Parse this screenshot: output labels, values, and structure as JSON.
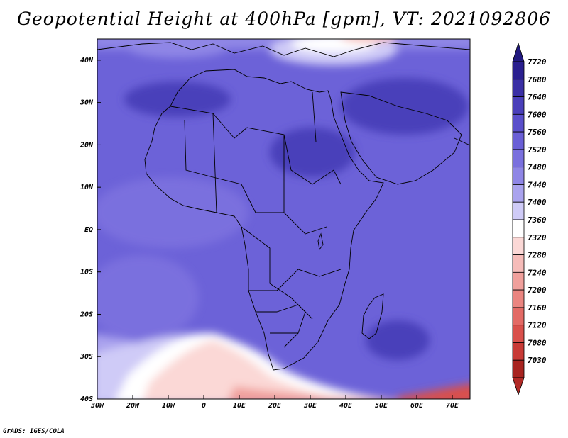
{
  "title": "Geopotential Height at 400hPa [gpm], VT: 2021092806",
  "credit": "GrADS: IGES/COLA",
  "map": {
    "lon_range": [
      -30,
      75
    ],
    "lat_range": [
      -40,
      45
    ],
    "lon_ticks": [
      {
        "value": -30,
        "label": "30W"
      },
      {
        "value": -20,
        "label": "20W"
      },
      {
        "value": -10,
        "label": "10W"
      },
      {
        "value": 0,
        "label": "0"
      },
      {
        "value": 10,
        "label": "10E"
      },
      {
        "value": 20,
        "label": "20E"
      },
      {
        "value": 30,
        "label": "30E"
      },
      {
        "value": 40,
        "label": "40E"
      },
      {
        "value": 50,
        "label": "50E"
      },
      {
        "value": 60,
        "label": "60E"
      },
      {
        "value": 70,
        "label": "70E"
      }
    ],
    "lat_ticks": [
      {
        "value": 40,
        "label": "40N"
      },
      {
        "value": 30,
        "label": "30N"
      },
      {
        "value": 20,
        "label": "20N"
      },
      {
        "value": 10,
        "label": "10N"
      },
      {
        "value": 0,
        "label": "EQ"
      },
      {
        "value": -10,
        "label": "10S"
      },
      {
        "value": -20,
        "label": "20S"
      },
      {
        "value": -30,
        "label": "30S"
      },
      {
        "value": -40,
        "label": "40S"
      }
    ]
  },
  "colorbar": {
    "levels": [
      {
        "label": "7720",
        "color": "#2a1f8f"
      },
      {
        "label": "7680",
        "color": "#3a2fa5"
      },
      {
        "label": "7640",
        "color": "#4a3fba"
      },
      {
        "label": "7600",
        "color": "#5a4fcb"
      },
      {
        "label": "7560",
        "color": "#6a5fd6"
      },
      {
        "label": "7520",
        "color": "#7a70de"
      },
      {
        "label": "7480",
        "color": "#8f86e6"
      },
      {
        "label": "7440",
        "color": "#aaa3ee"
      },
      {
        "label": "7400",
        "color": "#cfcbf7"
      },
      {
        "label": "7360",
        "color": "#ffffff"
      },
      {
        "label": "7320",
        "color": "#fbd8d6"
      },
      {
        "label": "7280",
        "color": "#f6bcb9"
      },
      {
        "label": "7240",
        "color": "#f0a09c"
      },
      {
        "label": "7200",
        "color": "#ea8580"
      },
      {
        "label": "7160",
        "color": "#e36a65"
      },
      {
        "label": "7120",
        "color": "#d9504b"
      },
      {
        "label": "7080",
        "color": "#c83a36"
      },
      {
        "label": "7030",
        "color": "#a82420"
      }
    ],
    "top_arrow_color": "#221a80",
    "bottom_arrow_color": "#b22a26"
  }
}
